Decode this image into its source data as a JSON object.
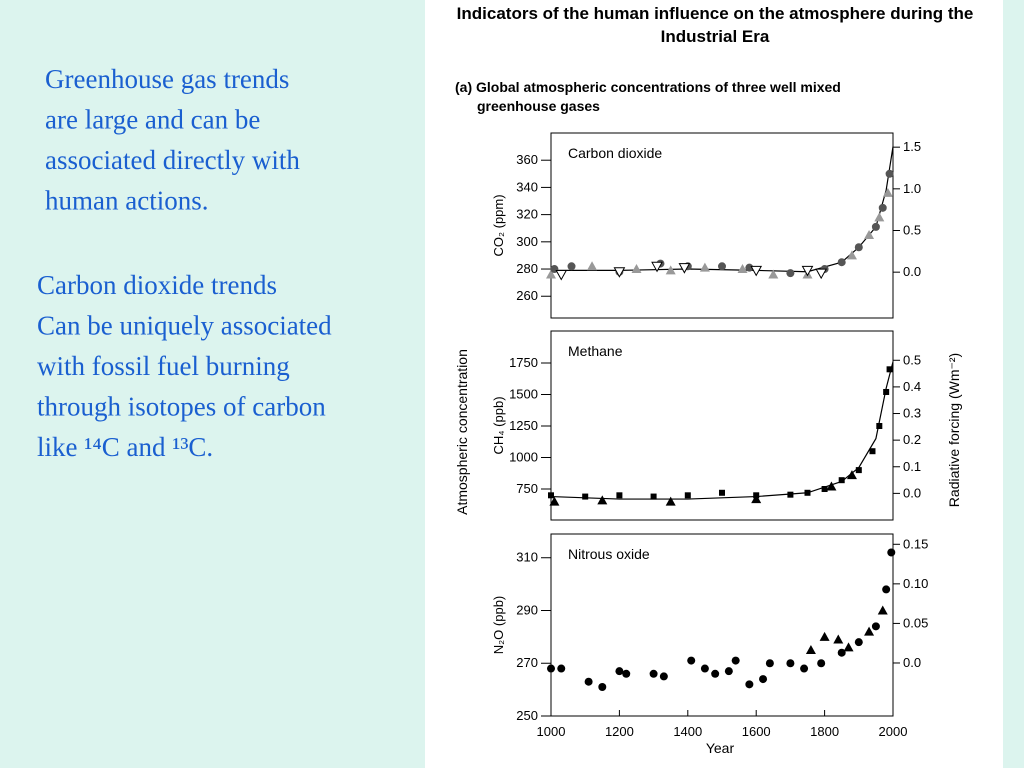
{
  "slide": {
    "paragraphs": [
      [
        "Greenhouse gas trends",
        "are large and can be",
        "associated directly with",
        "human actions."
      ],
      [
        "Carbon dioxide trends",
        "Can be uniquely associated",
        "with fossil fuel burning",
        "through isotopes of carbon",
        "like ¹⁴C and ¹³C."
      ]
    ]
  },
  "figure": {
    "title": "Indicators of the human influence on the atmosphere during the Industrial Era",
    "subtitle": "(a) Global atmospheric concentrations of three well mixed greenhouse gases",
    "y_label": "Atmospheric concentration",
    "y2_label": "Radiative forcing  (Wm⁻²)",
    "x_label": "Year"
  },
  "chart_data": [
    {
      "type": "scatter",
      "title": "Carbon dioxide",
      "y_label": "CO₂  (ppm)",
      "xlim": [
        1000,
        2000
      ],
      "ylim": [
        244,
        380
      ],
      "yticks": [
        260,
        280,
        300,
        320,
        340,
        360
      ],
      "y2lim": [
        -0.55,
        1.67
      ],
      "y2ticks": [
        {
          "value": 0,
          "label": "0.0"
        },
        {
          "value": 0.5,
          "label": "0.5"
        },
        {
          "value": 1,
          "label": "1.0"
        },
        {
          "value": 1.5,
          "label": "1.5"
        }
      ],
      "series": [
        {
          "marker": "triangle",
          "color": "#999999",
          "x": [
            1000,
            1120,
            1250,
            1350,
            1450,
            1560,
            1650,
            1750,
            1880,
            1930,
            1960,
            1985
          ],
          "values": [
            276,
            282,
            280,
            279,
            281,
            280,
            276,
            276,
            290,
            305,
            318,
            336
          ]
        },
        {
          "marker": "circle",
          "color": "#555555",
          "x": [
            1010,
            1060,
            1200,
            1320,
            1400,
            1500,
            1580,
            1700,
            1800,
            1850,
            1900,
            1950,
            1970,
            1990
          ],
          "values": [
            280,
            282,
            278,
            284,
            282,
            282,
            281,
            277,
            280,
            285,
            296,
            311,
            325,
            350
          ]
        },
        {
          "marker": "open-triangle",
          "color": "#000000",
          "x": [
            1030,
            1200,
            1310,
            1390,
            1600,
            1750,
            1790
          ],
          "values": [
            276,
            278,
            282,
            281,
            279,
            279,
            277
          ]
        }
      ],
      "line": {
        "color": "#000000",
        "x": [
          1000,
          1200,
          1400,
          1600,
          1750,
          1850,
          1900,
          1950,
          1980,
          2000
        ],
        "values": [
          279,
          279,
          280,
          279,
          278,
          285,
          296,
          311,
          338,
          370
        ]
      }
    },
    {
      "type": "scatter",
      "title": "Methane",
      "y_label": "CH₄  (ppb)",
      "xlim": [
        1000,
        2000
      ],
      "ylim": [
        504,
        2004
      ],
      "yticks": [
        750,
        1000,
        1250,
        1500,
        1750
      ],
      "y2lim": [
        -0.1,
        0.61
      ],
      "y2ticks": [
        {
          "value": 0,
          "label": "0.0"
        },
        0.1,
        0.2,
        0.3,
        0.4,
        0.5
      ],
      "series": [
        {
          "marker": "square",
          "color": "#000000",
          "x": [
            1000,
            1100,
            1200,
            1300,
            1400,
            1500,
            1600,
            1700,
            1750,
            1800,
            1850,
            1900,
            1940,
            1960,
            1980,
            1990
          ],
          "values": [
            700,
            690,
            700,
            690,
            700,
            720,
            700,
            705,
            720,
            750,
            820,
            900,
            1050,
            1250,
            1520,
            1700
          ]
        },
        {
          "marker": "triangle",
          "color": "#000000",
          "x": [
            1010,
            1150,
            1350,
            1600,
            1820,
            1880
          ],
          "values": [
            650,
            660,
            650,
            670,
            770,
            860
          ]
        }
      ],
      "line": {
        "color": "#000000",
        "x": [
          1000,
          1200,
          1400,
          1600,
          1750,
          1850,
          1900,
          1950,
          1980,
          2000
        ],
        "values": [
          690,
          670,
          670,
          690,
          720,
          810,
          920,
          1150,
          1550,
          1760
        ]
      }
    },
    {
      "type": "scatter",
      "title": "Nitrous oxide",
      "y_label": "N₂O  (ppb)",
      "x_label": "Year",
      "xlim": [
        1000,
        2000
      ],
      "xticks": [
        1000,
        1200,
        1400,
        1600,
        1800,
        2000
      ],
      "ylim": [
        250,
        319
      ],
      "yticks": [
        250,
        270,
        290,
        310
      ],
      "y2lim": [
        -0.067,
        0.163
      ],
      "y2ticks": [
        {
          "value": 0,
          "label": "0.0"
        },
        0.05,
        {
          "value": 0.1,
          "label": "0.10"
        },
        0.15
      ],
      "series": [
        {
          "marker": "circle",
          "color": "#000000",
          "x": [
            1000,
            1030,
            1110,
            1150,
            1200,
            1220,
            1300,
            1330,
            1410,
            1450,
            1480,
            1520,
            1540,
            1580,
            1620,
            1640,
            1700,
            1740,
            1790,
            1850,
            1900,
            1950,
            1980,
            1995
          ],
          "values": [
            268,
            268,
            263,
            261,
            267,
            266,
            266,
            265,
            271,
            268,
            266,
            267,
            271,
            262,
            264,
            270,
            270,
            268,
            270,
            274,
            278,
            284,
            298,
            312
          ]
        },
        {
          "marker": "triangle",
          "color": "#000000",
          "x": [
            1760,
            1800,
            1840,
            1870,
            1930,
            1970
          ],
          "values": [
            275,
            280,
            279,
            276,
            282,
            290
          ]
        }
      ]
    }
  ]
}
